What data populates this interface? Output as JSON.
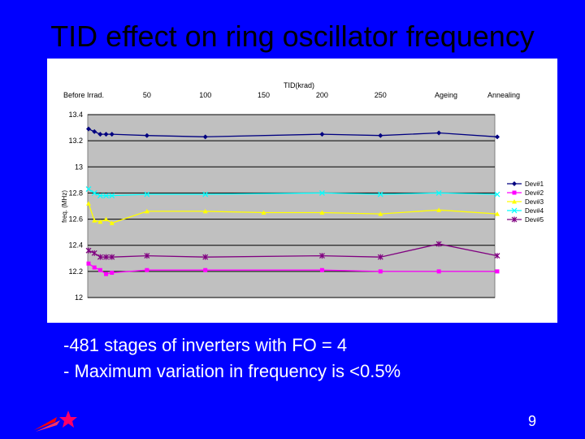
{
  "slide": {
    "title": "TID effect on ring oscillator frequency",
    "notes": [
      "-481 stages of inverters with FO = 4",
      "- Maximum variation in frequency is <0.5%"
    ],
    "page_number": "9"
  },
  "chart_data": {
    "type": "line",
    "title": "",
    "xlabel": "TID(krad)",
    "ylabel": "freq. (MHz)",
    "x_tick_labels": [
      {
        "label": "Before Irrad.",
        "x": 0
      },
      {
        "label": "50",
        "x": 50
      },
      {
        "label": "100",
        "x": 100
      },
      {
        "label": "150",
        "x": 150
      },
      {
        "label": "200",
        "x": 200
      },
      {
        "label": "250",
        "x": 250
      },
      {
        "label": "Ageing",
        "x": 300
      },
      {
        "label": "Annealing",
        "x": 350
      }
    ],
    "xlim": [
      0,
      350
    ],
    "ylim": [
      12,
      13.4
    ],
    "y_ticks": [
      "12",
      "12.2",
      "12.4",
      "12.6",
      "12.8",
      "13",
      "13.2",
      "13.4"
    ],
    "grid": "horizontal",
    "legend": "right",
    "series": [
      {
        "name": "Dev#1",
        "color": "#000080",
        "marker": "diamond",
        "x": [
          0,
          5,
          10,
          15,
          20,
          50,
          100,
          200,
          250,
          300,
          350
        ],
        "y": [
          13.29,
          13.27,
          13.25,
          13.25,
          13.25,
          13.24,
          13.23,
          13.25,
          13.24,
          13.26,
          13.23
        ]
      },
      {
        "name": "Dev#2",
        "color": "#ff00ff",
        "marker": "square",
        "x": [
          0,
          5,
          10,
          15,
          20,
          50,
          100,
          200,
          250,
          300,
          350
        ],
        "y": [
          12.26,
          12.23,
          12.21,
          12.18,
          12.19,
          12.21,
          12.21,
          12.21,
          12.2,
          12.2,
          12.2
        ]
      },
      {
        "name": "Dev#3",
        "color": "#ffff00",
        "marker": "triangle",
        "x": [
          0,
          5,
          10,
          15,
          20,
          50,
          100,
          150,
          200,
          250,
          300,
          350
        ],
        "y": [
          12.72,
          12.59,
          12.58,
          12.6,
          12.57,
          12.66,
          12.66,
          12.65,
          12.65,
          12.64,
          12.67,
          12.64
        ]
      },
      {
        "name": "Dev#4",
        "color": "#00ffff",
        "marker": "x",
        "x": [
          0,
          5,
          10,
          15,
          20,
          50,
          100,
          200,
          250,
          300,
          350
        ],
        "y": [
          12.83,
          12.8,
          12.78,
          12.78,
          12.78,
          12.79,
          12.79,
          12.8,
          12.79,
          12.8,
          12.79
        ]
      },
      {
        "name": "Dev#5",
        "color": "#800080",
        "marker": "star",
        "x": [
          0,
          5,
          10,
          15,
          20,
          50,
          100,
          200,
          250,
          300,
          350
        ],
        "y": [
          12.36,
          12.34,
          12.31,
          12.31,
          12.31,
          12.32,
          12.31,
          12.32,
          12.31,
          12.41,
          12.32
        ]
      }
    ]
  },
  "colors": {
    "background": "#0000ff",
    "plot_area": "#c0c0c0",
    "chart_area": "#ffffff"
  },
  "icons": {
    "logo": "star-comet-logo"
  }
}
